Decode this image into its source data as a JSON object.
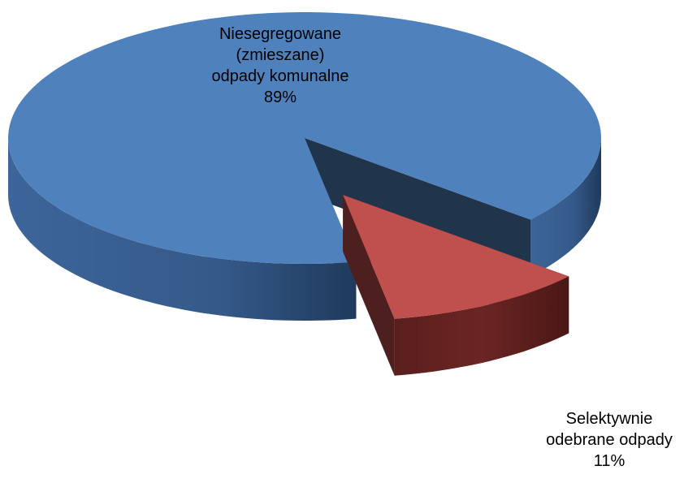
{
  "chart_data": {
    "type": "pie3d",
    "categories": [
      "Niesegregowane\n(zmieszane)\nodpady komunalne",
      "Selektywnie\nodebrane odpady"
    ],
    "values": [
      89,
      11
    ],
    "value_labels": [
      "89%",
      "11%"
    ],
    "colors": [
      "#4f81bd",
      "#c0504d"
    ]
  }
}
